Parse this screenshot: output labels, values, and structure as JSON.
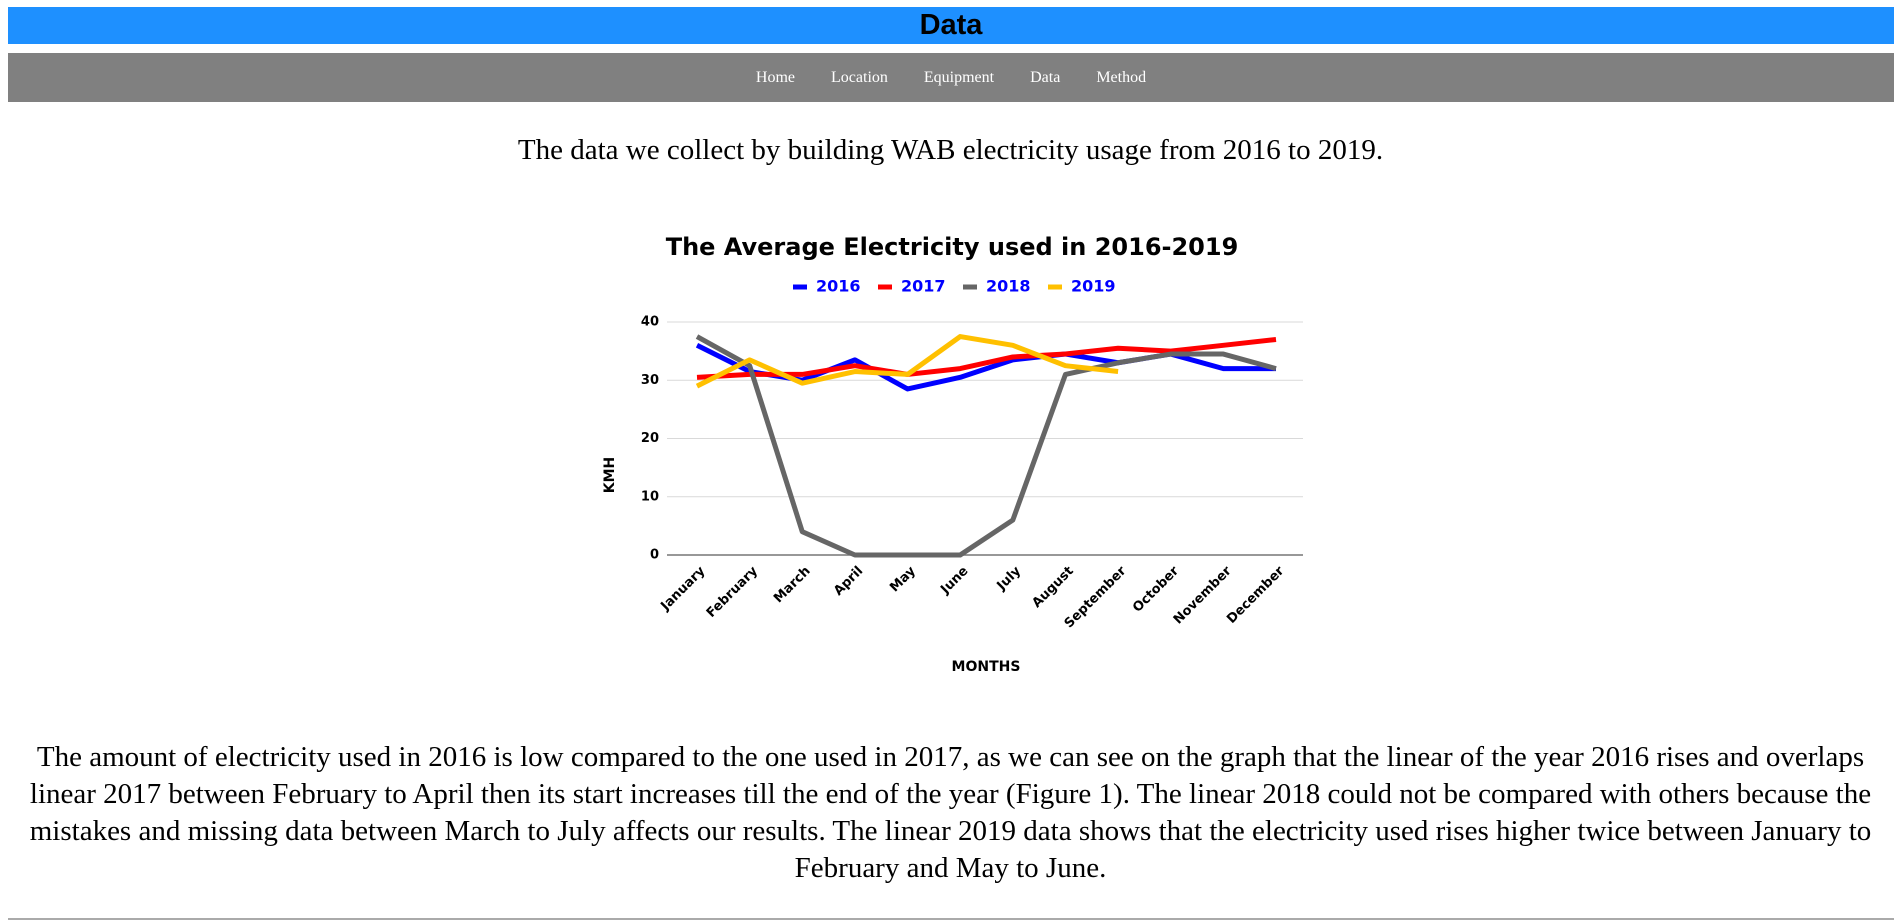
{
  "header": {
    "title": "Data"
  },
  "nav": {
    "items": [
      "Home",
      "Location",
      "Equipment",
      "Data",
      "Method"
    ]
  },
  "intro": "The data we collect by building WAB electricity usage from 2016 to 2019.",
  "chart_data": {
    "type": "line",
    "title": "The Average Electricity used in 2016-2019",
    "x_label": "MONTHS",
    "y_label": "KMH",
    "categories": [
      "January",
      "February",
      "March",
      "April",
      "May",
      "June",
      "July",
      "August",
      "September",
      "October",
      "November",
      "December"
    ],
    "series": [
      {
        "name": "2016",
        "color": "#0000ff",
        "values": [
          36,
          31.5,
          30,
          33.5,
          28.5,
          30.5,
          33.5,
          34.5,
          33,
          34.5,
          32,
          32
        ]
      },
      {
        "name": "2017",
        "color": "#ff0000",
        "values": [
          30.5,
          31,
          31,
          32.5,
          31,
          32,
          34,
          34.5,
          35.5,
          35,
          36,
          37
        ]
      },
      {
        "name": "2018",
        "color": "#666666",
        "values": [
          37.5,
          32.5,
          4,
          0,
          0,
          0,
          6,
          31,
          33,
          34.5,
          34.5,
          32
        ]
      },
      {
        "name": "2019",
        "color": "#ffc000",
        "values": [
          29,
          33.5,
          29.5,
          31.5,
          31,
          37.5,
          36,
          32.5,
          31.5,
          null,
          null,
          null
        ]
      }
    ],
    "ylim": [
      0,
      40
    ],
    "yticks": [
      0,
      10,
      20,
      30,
      40
    ],
    "grid": true,
    "legend": "top"
  },
  "paragraph": "The amount of electricity used in 2016 is low compared to the one used in 2017, as we can see on the graph that the linear of the year 2016 rises and overlaps linear 2017 between February to April then its start increases till the end of the year (Figure 1). The linear 2018 could not be compared with others because the mistakes and missing data between March to July affects our results. The linear 2019 data shows that the electricity used rises higher twice between January to February and May to June."
}
